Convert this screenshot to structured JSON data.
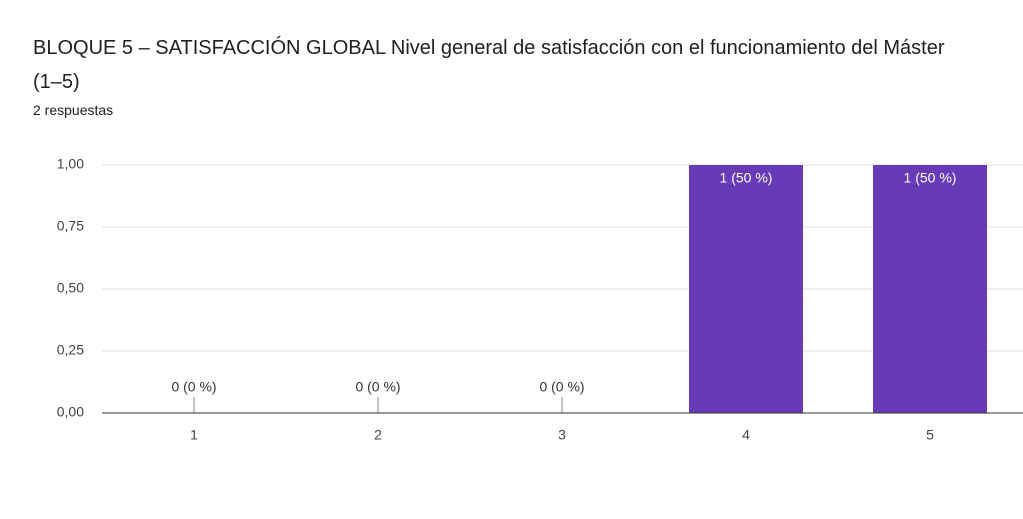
{
  "chart_data": {
    "type": "bar",
    "title": "BLOQUE 5 – SATISFACCIÓN GLOBAL Nivel general de satisfacción con el funcionamiento del Máster (1–5)",
    "subtitle": "2 respuestas",
    "categories": [
      "1",
      "2",
      "3",
      "4",
      "5"
    ],
    "values": [
      0,
      0,
      0,
      1,
      1
    ],
    "value_labels": [
      "0 (0 %)",
      "0 (0 %)",
      "0 (0 %)",
      "1 (50 %)",
      "1 (50 %)"
    ],
    "color": "#673ab7",
    "ylim": [
      0,
      1
    ],
    "yticks": [
      {
        "value": 0,
        "label": "0,00"
      },
      {
        "value": 0.25,
        "label": "0,25"
      },
      {
        "value": 0.5,
        "label": "0,50"
      },
      {
        "value": 0.75,
        "label": "0,75"
      },
      {
        "value": 1,
        "label": "1,00"
      }
    ],
    "grid": true
  }
}
